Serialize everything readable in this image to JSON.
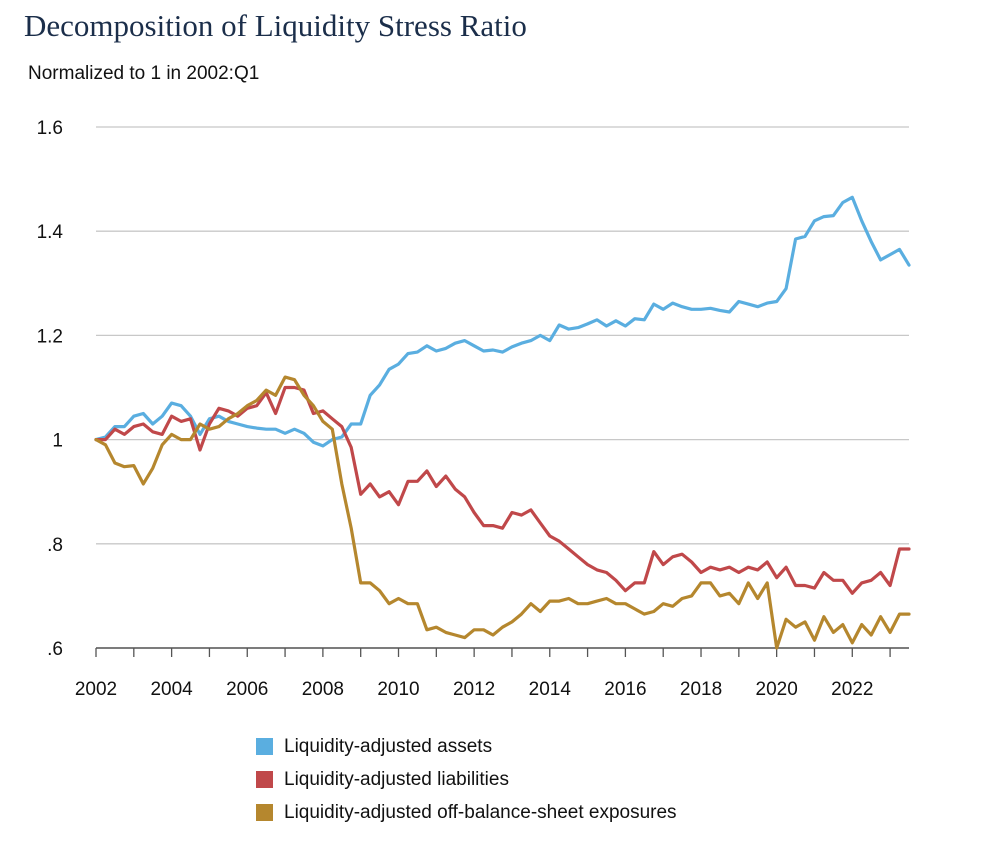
{
  "chart_data": {
    "type": "line",
    "title": "Decomposition of Liquidity Stress Ratio",
    "subtitle": "Normalized to 1 in 2002:Q1",
    "xlabel": "",
    "ylabel": "",
    "x_range": [
      2002,
      2023.5
    ],
    "x_ticks": [
      2002,
      2004,
      2006,
      2008,
      2010,
      2012,
      2014,
      2016,
      2018,
      2020,
      2022
    ],
    "x_tick_labels": [
      "2002",
      "2004",
      "2006",
      "2008",
      "2010",
      "2012",
      "2014",
      "2016",
      "2018",
      "2020",
      "2022"
    ],
    "ylim": [
      0.6,
      1.6
    ],
    "y_ticks": [
      0.6,
      0.8,
      1.0,
      1.2,
      1.4,
      1.6
    ],
    "y_tick_labels": [
      ".6",
      ".8",
      "1",
      "1.2",
      "1.4",
      "1.6"
    ],
    "grid": "horizontal",
    "legend_position": "bottom",
    "x_start": 2002,
    "x_step": 0.25,
    "series": [
      {
        "name": "Liquidity-adjusted assets",
        "color": "#5aaee0",
        "values": [
          1.0,
          1.005,
          1.025,
          1.025,
          1.045,
          1.05,
          1.03,
          1.045,
          1.07,
          1.065,
          1.045,
          1.01,
          1.04,
          1.045,
          1.035,
          1.03,
          1.025,
          1.022,
          1.02,
          1.02,
          1.012,
          1.02,
          1.012,
          0.995,
          0.988,
          1.0,
          1.005,
          1.03,
          1.03,
          1.085,
          1.105,
          1.135,
          1.145,
          1.165,
          1.168,
          1.18,
          1.17,
          1.175,
          1.185,
          1.19,
          1.18,
          1.17,
          1.172,
          1.168,
          1.178,
          1.185,
          1.19,
          1.2,
          1.19,
          1.22,
          1.212,
          1.215,
          1.222,
          1.23,
          1.218,
          1.228,
          1.218,
          1.232,
          1.23,
          1.26,
          1.25,
          1.262,
          1.255,
          1.25,
          1.25,
          1.252,
          1.248,
          1.245,
          1.265,
          1.26,
          1.255,
          1.262,
          1.265,
          1.29,
          1.385,
          1.39,
          1.42,
          1.428,
          1.43,
          1.455,
          1.465,
          1.42,
          1.38,
          1.345,
          1.355,
          1.365,
          1.335
        ]
      },
      {
        "name": "Liquidity-adjusted liabilities",
        "color": "#c0484a",
        "values": [
          1.0,
          1.0,
          1.02,
          1.01,
          1.025,
          1.03,
          1.015,
          1.01,
          1.045,
          1.035,
          1.04,
          0.98,
          1.03,
          1.06,
          1.055,
          1.045,
          1.06,
          1.065,
          1.09,
          1.05,
          1.1,
          1.1,
          1.095,
          1.05,
          1.055,
          1.04,
          1.025,
          0.985,
          0.895,
          0.915,
          0.89,
          0.9,
          0.875,
          0.92,
          0.92,
          0.94,
          0.91,
          0.93,
          0.905,
          0.89,
          0.86,
          0.835,
          0.835,
          0.83,
          0.86,
          0.855,
          0.865,
          0.84,
          0.815,
          0.805,
          0.79,
          0.775,
          0.76,
          0.75,
          0.745,
          0.73,
          0.71,
          0.725,
          0.725,
          0.785,
          0.76,
          0.775,
          0.78,
          0.765,
          0.745,
          0.755,
          0.75,
          0.755,
          0.745,
          0.755,
          0.75,
          0.765,
          0.735,
          0.755,
          0.72,
          0.72,
          0.715,
          0.745,
          0.73,
          0.73,
          0.705,
          0.725,
          0.73,
          0.745,
          0.72,
          0.79,
          0.79
        ]
      },
      {
        "name": "Liquidity-adjusted off-balance-sheet exposures",
        "color": "#b5872e",
        "values": [
          1.0,
          0.99,
          0.955,
          0.948,
          0.95,
          0.915,
          0.945,
          0.99,
          1.01,
          1.0,
          1.0,
          1.03,
          1.02,
          1.025,
          1.04,
          1.05,
          1.065,
          1.075,
          1.095,
          1.085,
          1.12,
          1.115,
          1.085,
          1.065,
          1.035,
          1.02,
          0.915,
          0.83,
          0.725,
          0.725,
          0.71,
          0.685,
          0.695,
          0.685,
          0.685,
          0.635,
          0.64,
          0.63,
          0.625,
          0.62,
          0.635,
          0.635,
          0.625,
          0.64,
          0.65,
          0.665,
          0.685,
          0.67,
          0.69,
          0.69,
          0.695,
          0.685,
          0.685,
          0.69,
          0.695,
          0.685,
          0.685,
          0.675,
          0.665,
          0.67,
          0.685,
          0.68,
          0.695,
          0.7,
          0.725,
          0.725,
          0.7,
          0.705,
          0.685,
          0.725,
          0.695,
          0.725,
          0.6,
          0.655,
          0.64,
          0.65,
          0.615,
          0.66,
          0.63,
          0.645,
          0.61,
          0.645,
          0.625,
          0.66,
          0.63,
          0.665,
          0.665
        ]
      }
    ]
  }
}
